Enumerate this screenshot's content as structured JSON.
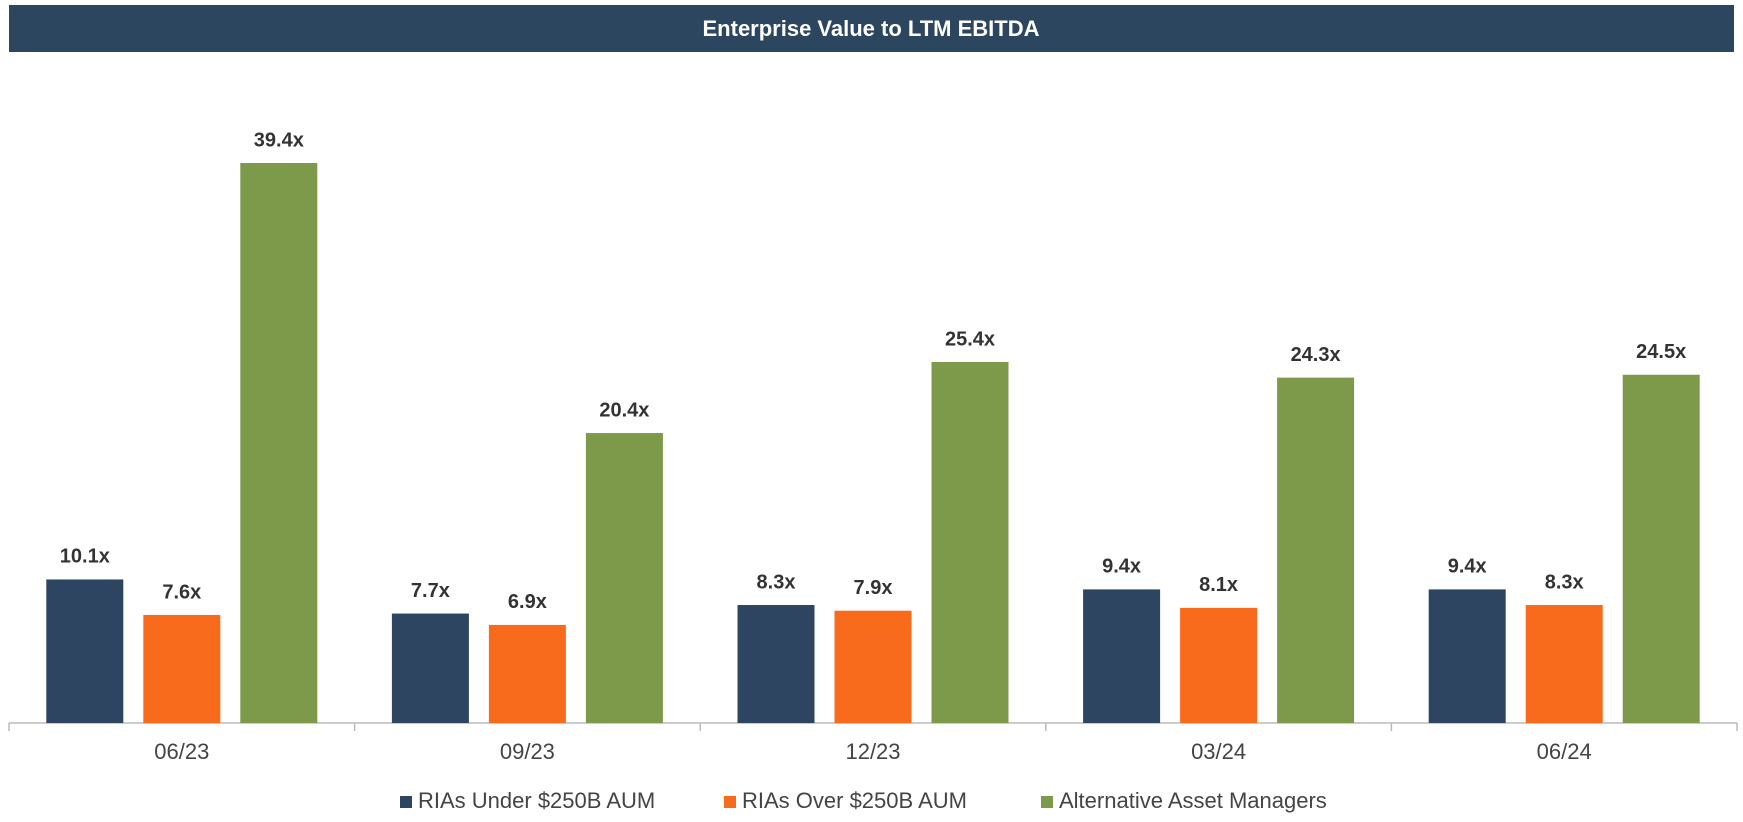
{
  "chart_data": {
    "type": "bar",
    "title": "Enterprise Value to LTM EBITDA",
    "categories": [
      "06/23",
      "09/23",
      "12/23",
      "03/24",
      "06/24"
    ],
    "series": [
      {
        "name": "RIAs Under $250B AUM",
        "color": "#2d4560",
        "values": [
          10.1,
          7.7,
          8.3,
          9.4,
          9.4
        ],
        "value_labels": [
          "10.1x",
          "7.7x",
          "8.3x",
          "9.4x",
          "9.4x"
        ]
      },
      {
        "name": "RIAs Over $250B AUM",
        "color": "#f96b1c",
        "values": [
          7.6,
          6.9,
          7.9,
          8.1,
          8.3
        ],
        "value_labels": [
          "7.6x",
          "6.9x",
          "7.9x",
          "8.1x",
          "8.3x"
        ]
      },
      {
        "name": "Alternative Asset Managers",
        "color": "#7c9a4a",
        "values": [
          39.4,
          20.4,
          25.4,
          24.3,
          24.5
        ],
        "value_labels": [
          "39.4x",
          "20.4x",
          "25.4x",
          "24.3x",
          "24.5x"
        ]
      }
    ],
    "legend": "bottom"
  }
}
